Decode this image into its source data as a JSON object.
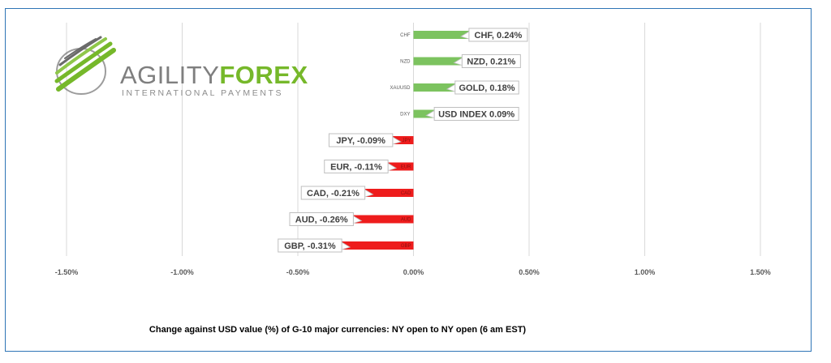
{
  "logo": {
    "word1": "AGILITY",
    "word2": "FOREX",
    "sub": "INTERNATIONAL PAYMENTS"
  },
  "caption": "Change against  USD value (%)  of  G-10 major currencies:  NY open to NY open  (6 am EST)",
  "colors": {
    "positive": "#7cc35f",
    "negative": "#ee1c1c",
    "border": "#2e75b6",
    "logo_green": "#76b82a",
    "logo_gray": "#7f7f7f"
  },
  "chart_data": {
    "type": "bar",
    "orientation": "horizontal",
    "categories": [
      "CHF",
      "NZD",
      "XAUUSD",
      "DXY",
      "JPY",
      "EUR",
      "CAD",
      "AUD",
      "GBP"
    ],
    "values": [
      0.24,
      0.21,
      0.18,
      0.09,
      -0.09,
      -0.11,
      -0.21,
      -0.26,
      -0.31
    ],
    "data_labels": [
      "CHF, 0.24%",
      "NZD, 0.21%",
      "GOLD, 0.18%",
      "USD INDEX 0.09%",
      "JPY, -0.09%",
      "EUR, -0.11%",
      "CAD, -0.21%",
      "AUD, -0.26%",
      "GBP, -0.31%"
    ],
    "xlim": [
      -1.5,
      1.5
    ],
    "xticks": [
      -1.5,
      -1.0,
      -0.5,
      0.0,
      0.5,
      1.0,
      1.5
    ],
    "xtick_labels": [
      "-1.50%",
      "-1.00%",
      "-0.50%",
      "0.00%",
      "0.50%",
      "1.00%",
      "1.50%"
    ],
    "grid": true,
    "title": "Change against  USD value (%)  of  G-10 major currencies:  NY open to NY open  (6 am EST)"
  }
}
